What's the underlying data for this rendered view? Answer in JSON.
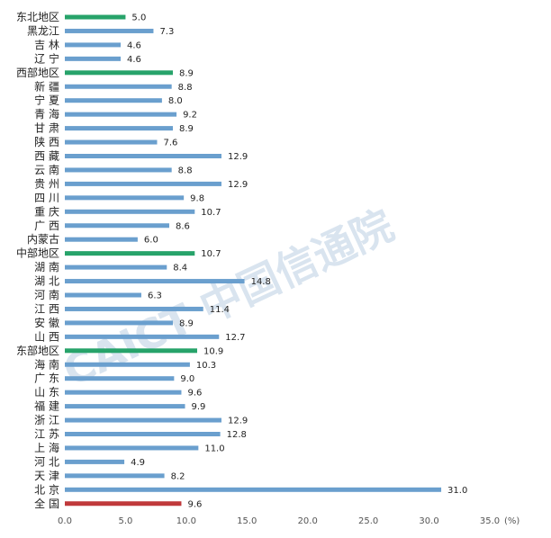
{
  "watermark": "CAICT 中国信通院",
  "chart_data": {
    "type": "bar",
    "orientation": "horizontal",
    "unit": "(%)",
    "xlim": [
      0,
      35
    ],
    "xticks": [
      "0.0",
      "5.0",
      "10.0",
      "15.0",
      "20.0",
      "25.0",
      "30.0",
      "35.0"
    ],
    "colors": {
      "province": "#6a9fce",
      "region": "#27a36a",
      "national": "#c0393b"
    },
    "categories": [
      {
        "label": "东北地区",
        "value": 5.0,
        "kind": "region"
      },
      {
        "label": "黑龙江",
        "value": 7.3,
        "kind": "province"
      },
      {
        "label": "吉 林",
        "value": 4.6,
        "kind": "province"
      },
      {
        "label": "辽 宁",
        "value": 4.6,
        "kind": "province"
      },
      {
        "label": "西部地区",
        "value": 8.9,
        "kind": "region"
      },
      {
        "label": "新 疆",
        "value": 8.8,
        "kind": "province"
      },
      {
        "label": "宁 夏",
        "value": 8.0,
        "kind": "province"
      },
      {
        "label": "青 海",
        "value": 9.2,
        "kind": "province"
      },
      {
        "label": "甘 肃",
        "value": 8.9,
        "kind": "province"
      },
      {
        "label": "陕 西",
        "value": 7.6,
        "kind": "province"
      },
      {
        "label": "西 藏",
        "value": 12.9,
        "kind": "province"
      },
      {
        "label": "云 南",
        "value": 8.8,
        "kind": "province"
      },
      {
        "label": "贵 州",
        "value": 12.9,
        "kind": "province"
      },
      {
        "label": "四 川",
        "value": 9.8,
        "kind": "province"
      },
      {
        "label": "重 庆",
        "value": 10.7,
        "kind": "province"
      },
      {
        "label": "广 西",
        "value": 8.6,
        "kind": "province"
      },
      {
        "label": "内蒙古",
        "value": 6.0,
        "kind": "province"
      },
      {
        "label": "中部地区",
        "value": 10.7,
        "kind": "region"
      },
      {
        "label": "湖 南",
        "value": 8.4,
        "kind": "province"
      },
      {
        "label": "湖 北",
        "value": 14.8,
        "kind": "province"
      },
      {
        "label": "河 南",
        "value": 6.3,
        "kind": "province"
      },
      {
        "label": "江 西",
        "value": 11.4,
        "kind": "province"
      },
      {
        "label": "安 徽",
        "value": 8.9,
        "kind": "province"
      },
      {
        "label": "山 西",
        "value": 12.7,
        "kind": "province"
      },
      {
        "label": "东部地区",
        "value": 10.9,
        "kind": "region"
      },
      {
        "label": "海 南",
        "value": 10.3,
        "kind": "province"
      },
      {
        "label": "广 东",
        "value": 9.0,
        "kind": "province"
      },
      {
        "label": "山 东",
        "value": 9.6,
        "kind": "province"
      },
      {
        "label": "福 建",
        "value": 9.9,
        "kind": "province"
      },
      {
        "label": "浙 江",
        "value": 12.9,
        "kind": "province"
      },
      {
        "label": "江 苏",
        "value": 12.8,
        "kind": "province"
      },
      {
        "label": "上 海",
        "value": 11.0,
        "kind": "province"
      },
      {
        "label": "河 北",
        "value": 4.9,
        "kind": "province"
      },
      {
        "label": "天 津",
        "value": 8.2,
        "kind": "province"
      },
      {
        "label": "北 京",
        "value": 31.0,
        "kind": "province"
      },
      {
        "label": "全 国",
        "value": 9.6,
        "kind": "national"
      }
    ]
  }
}
